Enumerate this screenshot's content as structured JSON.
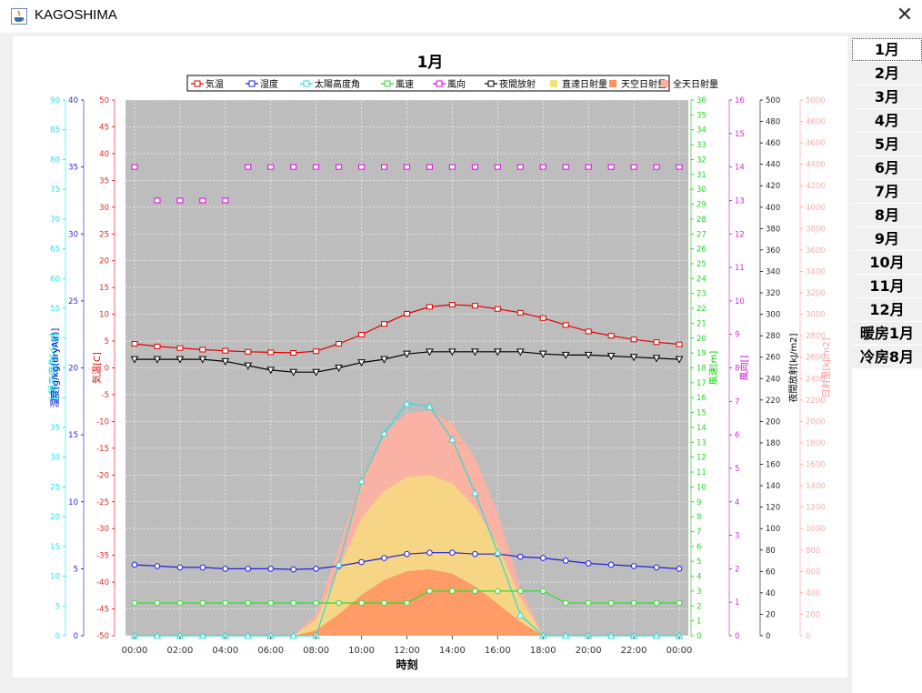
{
  "window": {
    "title": "KAGOSHIMA",
    "close_symbol": "✕"
  },
  "months": [
    "1月",
    "2月",
    "3月",
    "4月",
    "5月",
    "6月",
    "7月",
    "8月",
    "9月",
    "10月",
    "11月",
    "12月",
    "暖房1月",
    "冷房8月"
  ],
  "selected_month": "1月",
  "chart_data": {
    "type": "line",
    "title": "1月",
    "xlabel": "時刻",
    "x_ticks": [
      "00:00",
      "02:00",
      "04:00",
      "06:00",
      "08:00",
      "10:00",
      "12:00",
      "14:00",
      "16:00",
      "18:00",
      "20:00",
      "22:00",
      "00:00"
    ],
    "x_hours": [
      0,
      1,
      2,
      3,
      4,
      5,
      6,
      7,
      8,
      9,
      10,
      11,
      12,
      13,
      14,
      15,
      16,
      17,
      18,
      19,
      20,
      21,
      22,
      23,
      24
    ],
    "legend_position": "top",
    "grid": true,
    "legend": [
      "気温",
      "湿度",
      "太陽高度角",
      "風速",
      "風向",
      "夜間放射",
      "直達日射量",
      "天空日射量",
      "全天日射量"
    ],
    "axes": {
      "solar_altitude": {
        "label": "太陽高度角[deg]",
        "range": [
          0,
          90
        ],
        "ticks": [
          "0",
          "5",
          "10",
          "15",
          "20",
          "25",
          "30",
          "35",
          "40",
          "45",
          "50",
          "55",
          "60",
          "65",
          "70",
          "75",
          "80",
          "85",
          "90"
        ],
        "color": "#00e0e0"
      },
      "humidity": {
        "label": "湿度[g/kg(dryAir)]",
        "range": [
          0,
          40
        ],
        "ticks": [
          "0",
          "5",
          "10",
          "15",
          "20",
          "25",
          "30",
          "35",
          "40"
        ],
        "color": "#0000cc"
      },
      "temperature": {
        "label": "気温[C]",
        "range": [
          -50,
          50
        ],
        "ticks": [
          "-50",
          "-45",
          "-40",
          "-35",
          "-30",
          "-25",
          "-20",
          "-15",
          "-10",
          "-5",
          "0",
          "5",
          "10",
          "15",
          "20",
          "25",
          "30",
          "35",
          "40",
          "45",
          "50"
        ],
        "color": "#dd0000"
      },
      "wind_speed": {
        "label": "風速[m]",
        "range": [
          0,
          36
        ],
        "ticks": [
          "0",
          "1",
          "2",
          "3",
          "4",
          "5",
          "6",
          "7",
          "8",
          "9",
          "10",
          "11",
          "12",
          "13",
          "14",
          "15",
          "16",
          "17",
          "18",
          "19",
          "20",
          "21",
          "22",
          "23",
          "24",
          "25",
          "26",
          "27",
          "28",
          "29",
          "30",
          "31",
          "32",
          "33",
          "34",
          "35",
          "36"
        ],
        "color": "#00cc00"
      },
      "wind_direction": {
        "label": "風向[]",
        "range": [
          0,
          16
        ],
        "ticks": [
          "0",
          "1",
          "2",
          "3",
          "4",
          "5",
          "6",
          "7",
          "8",
          "9",
          "10",
          "11",
          "12",
          "13",
          "14",
          "15",
          "16"
        ],
        "color": "#cc00cc"
      },
      "night_radiation": {
        "label": "夜間放射[kJ/m2]",
        "range": [
          0,
          500
        ],
        "ticks": [
          "0",
          "20",
          "40",
          "60",
          "80",
          "100",
          "120",
          "140",
          "160",
          "180",
          "200",
          "220",
          "240",
          "260",
          "280",
          "300",
          "320",
          "340",
          "360",
          "380",
          "400",
          "420",
          "440",
          "460",
          "480",
          "500"
        ],
        "color": "#000000"
      },
      "solar_radiation": {
        "label": "日射量[kJ/m2]",
        "range": [
          0,
          5000
        ],
        "ticks": [
          "0",
          "200",
          "400",
          "600",
          "800",
          "1000",
          "1200",
          "1400",
          "1600",
          "1800",
          "2000",
          "2200",
          "2400",
          "2600",
          "2800",
          "3000",
          "3200",
          "3400",
          "3600",
          "3800",
          "4000",
          "4200",
          "4400",
          "4600",
          "4800",
          "5000"
        ],
        "color": "#ff9999"
      }
    },
    "series": [
      {
        "name": "気温",
        "axis": "temperature",
        "color": "#e00000",
        "marker": "square",
        "values": [
          4.5,
          4,
          3.7,
          3.4,
          3.2,
          3,
          2.9,
          2.8,
          3.1,
          4.5,
          6.2,
          8.2,
          10.1,
          11.4,
          11.8,
          11.6,
          11.0,
          10.3,
          9.3,
          8,
          6.8,
          6,
          5.3,
          4.8,
          4.4
        ]
      },
      {
        "name": "湿度",
        "axis": "humidity",
        "color": "#2020e0",
        "marker": "circle",
        "values": [
          5.3,
          5.2,
          5.1,
          5.1,
          5.0,
          5.0,
          5.0,
          4.95,
          5.0,
          5.2,
          5.5,
          5.8,
          6.1,
          6.2,
          6.2,
          6.1,
          6.1,
          5.9,
          5.8,
          5.6,
          5.4,
          5.3,
          5.2,
          5.1,
          5.0
        ]
      },
      {
        "name": "太陽高度角",
        "axis": "solar_altitude",
        "color": "#30d8d8",
        "marker": "triangle-up",
        "values": [
          0,
          0,
          0,
          0,
          0,
          0,
          0,
          0,
          0,
          12,
          26,
          34,
          39,
          38.5,
          33,
          24,
          14,
          3.5,
          0,
          0,
          0,
          0,
          0,
          0,
          0
        ]
      },
      {
        "name": "風速",
        "axis": "wind_speed",
        "color": "#30dd30",
        "marker": "circle",
        "values": [
          2.2,
          2.2,
          2.2,
          2.2,
          2.2,
          2.2,
          2.2,
          2.2,
          2.2,
          2.2,
          2.2,
          2.2,
          2.2,
          3.0,
          3.0,
          3.0,
          3.0,
          3.0,
          3.0,
          2.2,
          2.2,
          2.2,
          2.2,
          2.2,
          2.2
        ]
      },
      {
        "name": "風向",
        "axis": "wind_direction",
        "color": "#e000e0",
        "marker": "square-open",
        "markers_only": true,
        "values": [
          14,
          13,
          13,
          13,
          13,
          14,
          14,
          14,
          14,
          14,
          14,
          14,
          14,
          14,
          14,
          14,
          14,
          14,
          14,
          14,
          14,
          14,
          14,
          14,
          14
        ]
      },
      {
        "name": "夜間放射",
        "axis": "night_radiation",
        "color": "#000000",
        "marker": "triangle-down",
        "values": [
          258,
          258,
          258,
          258,
          256,
          252,
          248,
          246,
          246,
          250,
          255,
          258,
          263,
          265,
          265,
          265,
          265,
          265,
          263,
          262,
          262,
          261,
          260,
          259,
          258
        ]
      },
      {
        "name": "直達日射量",
        "axis": "solar_radiation",
        "color": "#f4e17a",
        "fill": true,
        "values": [
          0,
          0,
          0,
          0,
          0,
          0,
          0,
          0,
          150,
          620,
          1100,
          1350,
          1480,
          1500,
          1420,
          1200,
          850,
          350,
          0,
          0,
          0,
          0,
          0,
          0,
          0
        ]
      },
      {
        "name": "天空日射量",
        "axis": "solar_radiation",
        "color": "#ff9060",
        "fill": true,
        "values": [
          0,
          0,
          0,
          0,
          0,
          0,
          0,
          0,
          50,
          200,
          380,
          520,
          600,
          620,
          580,
          460,
          300,
          130,
          0,
          0,
          0,
          0,
          0,
          0,
          0
        ]
      },
      {
        "name": "全天日射量",
        "axis": "solar_radiation",
        "color": "#ffb0a0",
        "fill": true,
        "values": [
          0,
          0,
          0,
          0,
          0,
          0,
          0,
          0,
          200,
          820,
          1480,
          1880,
          2080,
          2100,
          1980,
          1660,
          1150,
          450,
          0,
          0,
          0,
          0,
          0,
          0,
          0
        ]
      }
    ]
  }
}
